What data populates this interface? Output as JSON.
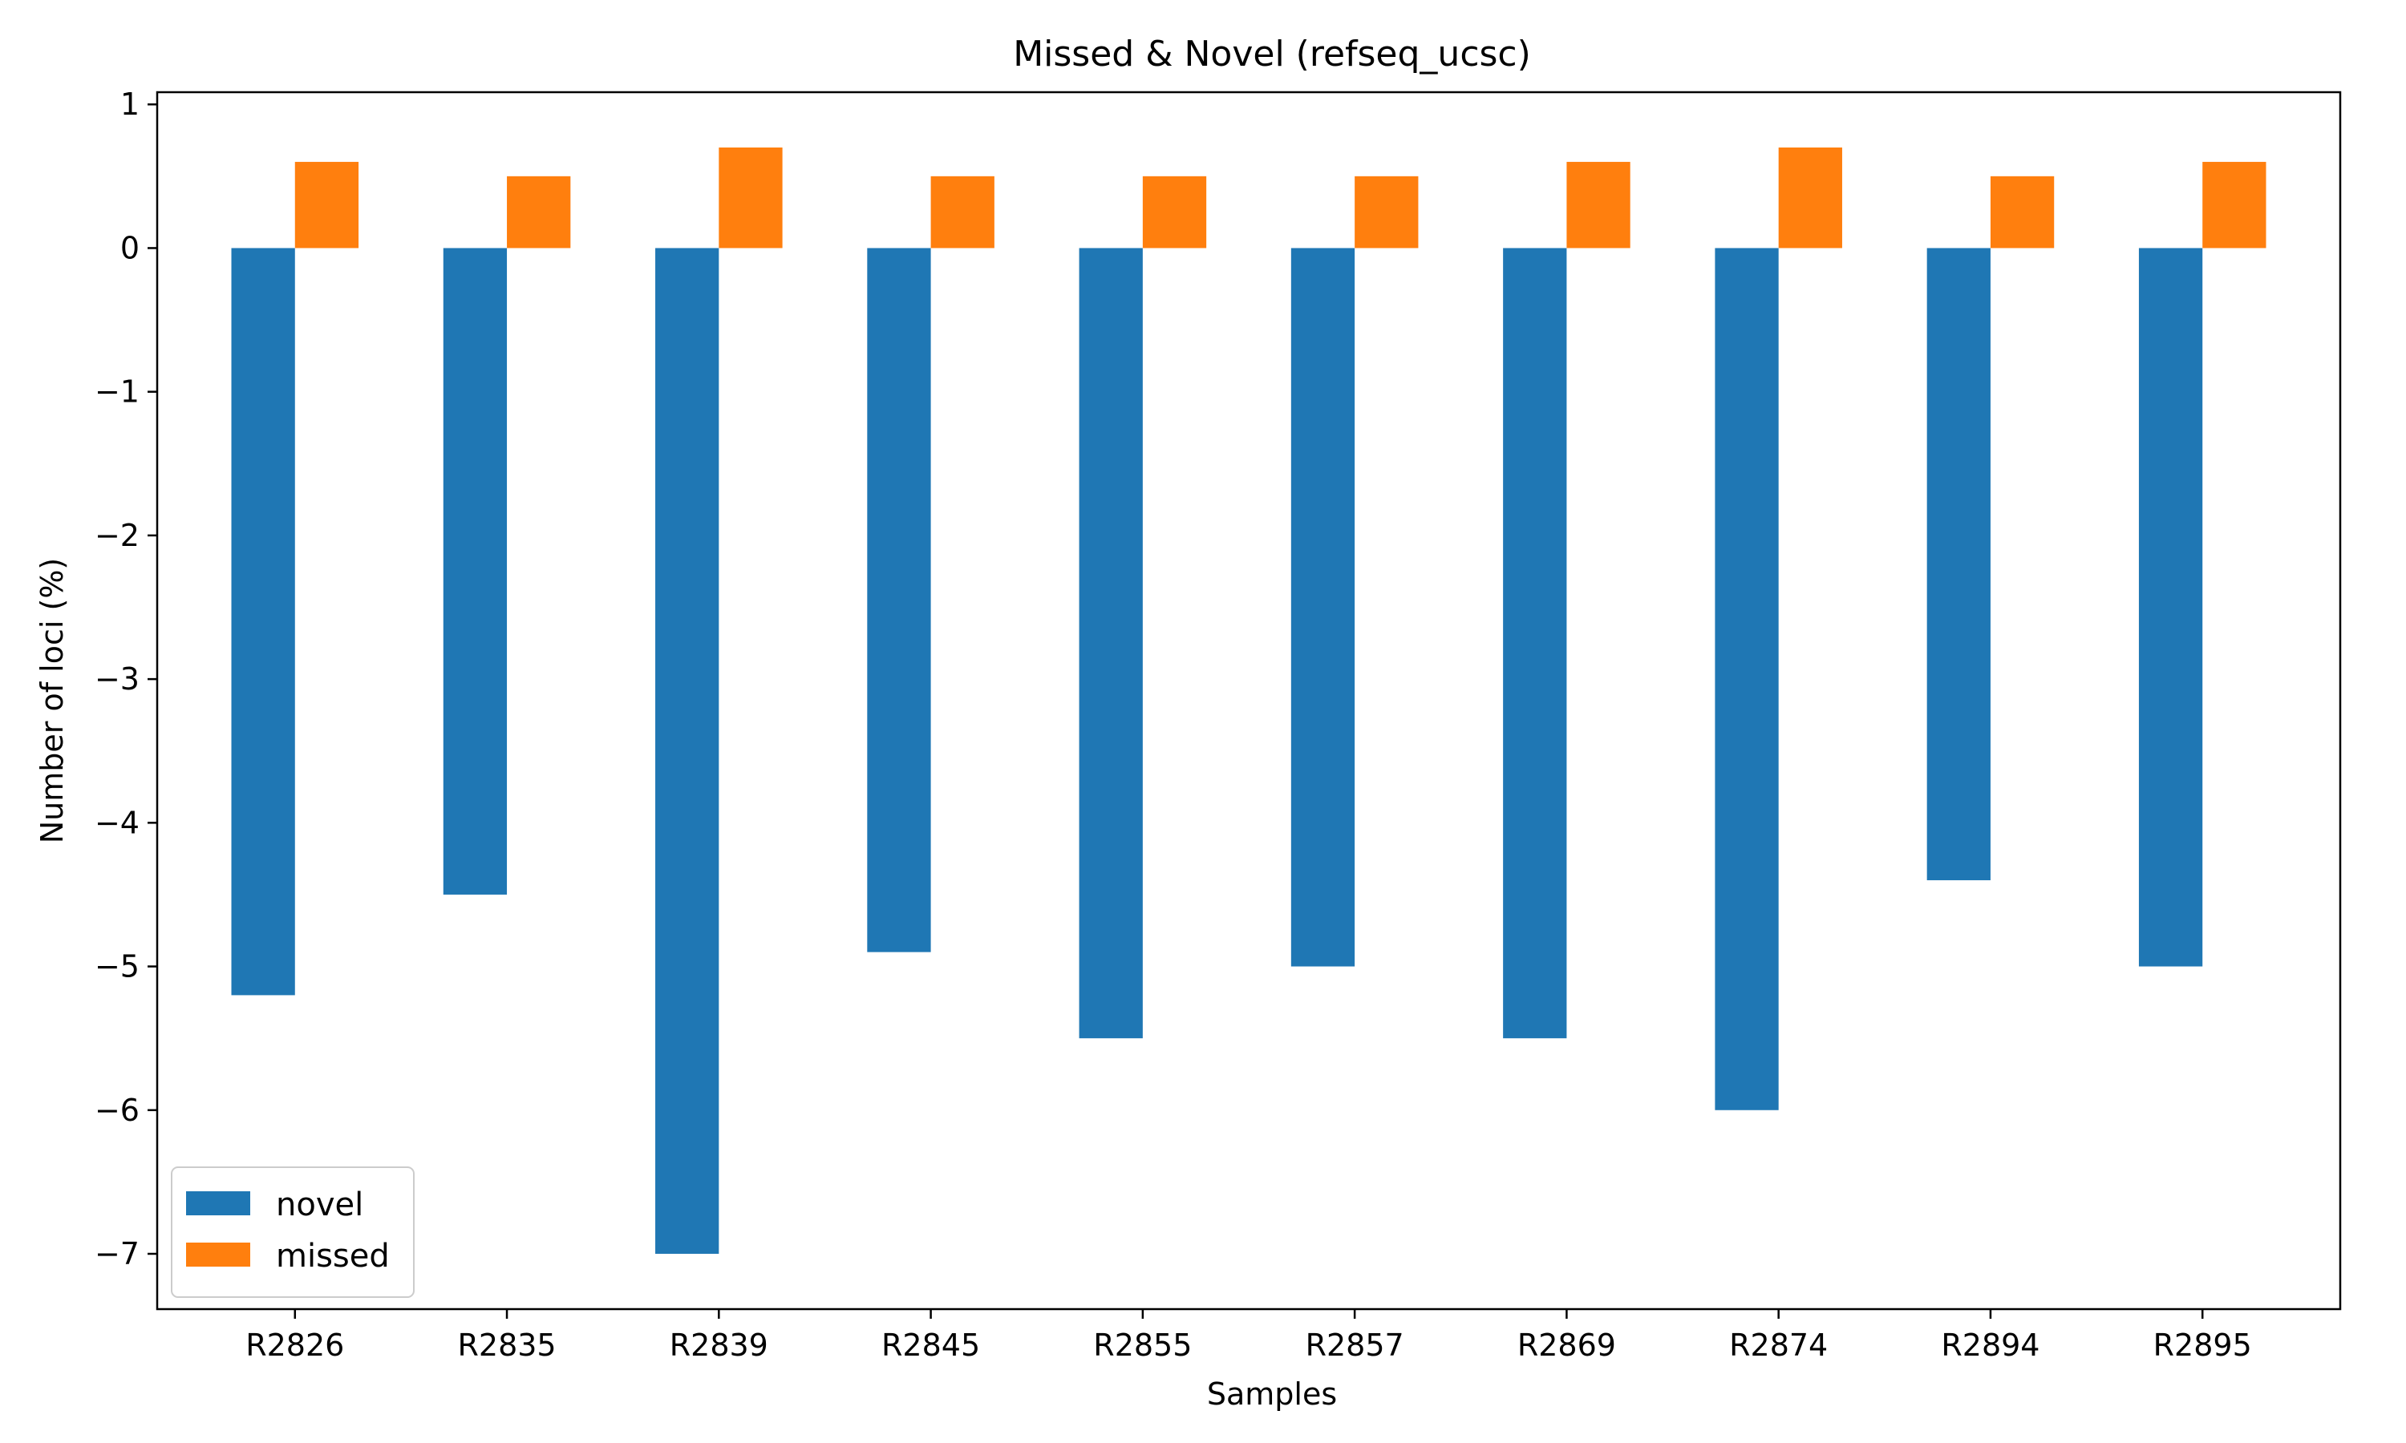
{
  "chart_data": {
    "type": "bar",
    "title": "Missed & Novel (refseq_ucsc)",
    "xlabel": "Samples",
    "ylabel": "Number of loci (%)",
    "categories": [
      "R2826",
      "R2835",
      "R2839",
      "R2845",
      "R2855",
      "R2857",
      "R2869",
      "R2874",
      "R2894",
      "R2895"
    ],
    "series": [
      {
        "name": "novel",
        "color": "#1f77b4",
        "values": [
          -5.2,
          -4.5,
          -7.0,
          -4.9,
          -5.5,
          -5.0,
          -5.5,
          -6.0,
          -4.4,
          -5.0
        ]
      },
      {
        "name": "missed",
        "color": "#ff7f0e",
        "values": [
          0.6,
          0.5,
          0.7,
          0.5,
          0.5,
          0.5,
          0.6,
          0.7,
          0.5,
          0.6
        ]
      }
    ],
    "ylim": [
      -7.385,
      1.085
    ],
    "yticks": [
      1,
      0,
      -1,
      -2,
      -3,
      -4,
      -5,
      -6,
      -7
    ],
    "legend_position": "lower-left",
    "grid": false
  }
}
